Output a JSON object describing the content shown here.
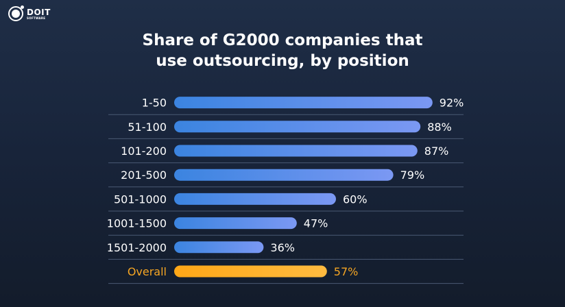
{
  "logo": {
    "main": "DOIT",
    "sub": "SOFTWARE"
  },
  "chart_data": {
    "type": "bar",
    "orientation": "horizontal",
    "title": "Share of G2000 companies that use outsourcing, by position",
    "title_lines": [
      "Share of G2000 companies that",
      "use outsourcing, by position"
    ],
    "categories": [
      "1-50",
      "51-100",
      "101-200",
      "201-500",
      "501-1000",
      "1001-1500",
      "1501-2000",
      "Overall"
    ],
    "values": [
      92,
      88,
      87,
      79,
      60,
      47,
      36,
      57
    ],
    "labels": [
      "92%",
      "88%",
      "87%",
      "79%",
      "60%",
      "47%",
      "36%",
      "57%"
    ],
    "highlight": "Overall",
    "colors": {
      "bar_start": "#3b84e0",
      "bar_end": "#7b98f3",
      "highlight_start": "#ffa717",
      "highlight_end": "#ffbb40",
      "highlight_text": "#f6a623",
      "separator": "#4b5a74"
    },
    "grid": false,
    "legend": "none"
  }
}
